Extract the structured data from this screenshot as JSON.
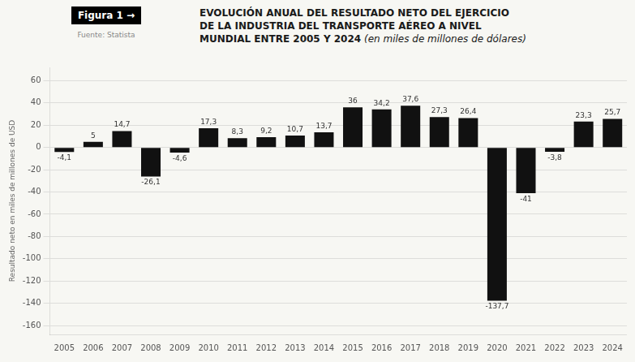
{
  "chart_data": {
    "type": "bar",
    "title": [
      "EVOLUCIÓN ANUAL DEL RESULTADO NETO DEL EJERCICIO",
      "DE LA INDUSTRIA DEL TRANSPORTE AÉREO A NIVEL",
      "MUNDIAL ENTRE 2005 Y 2024"
    ],
    "subtitle": "(en miles de millones de dólares)",
    "annotations": [
      "Figura 1 →",
      "Fuente: Statista"
    ],
    "ylabel": "Resultado neto en miles de millones de USD",
    "categories": [
      "2005",
      "2006",
      "2007",
      "2008",
      "2009",
      "2010",
      "2011",
      "2012",
      "2013",
      "2014",
      "2015",
      "2016",
      "2017",
      "2018",
      "2019",
      "2020",
      "2021",
      "2022",
      "2023",
      "2024"
    ],
    "values": [
      -4.1,
      5.0,
      14.7,
      -26.1,
      -4.6,
      17.3,
      8.3,
      9.2,
      10.7,
      13.7,
      36.0,
      34.2,
      37.6,
      27.3,
      26.4,
      -137.7,
      -41.0,
      -3.8,
      23.3,
      25.7
    ],
    "value_labels": [
      "-4,1",
      "5",
      "14,7",
      "-26,1",
      "-4,6",
      "17,3",
      "8,3",
      "9,2",
      "10,7",
      "13,7",
      "36",
      "34,2",
      "37,6",
      "27,3",
      "26,4",
      "-137,7",
      "-41",
      "-3,8",
      "23,3",
      "25,7"
    ],
    "data_labels": true,
    "color": "#111111",
    "ylim": [
      -168,
      72
    ],
    "yticks": [
      60,
      40,
      20,
      0,
      -20,
      -40,
      -60,
      -80,
      -100,
      -120,
      -140,
      -160
    ],
    "grid": true
  }
}
